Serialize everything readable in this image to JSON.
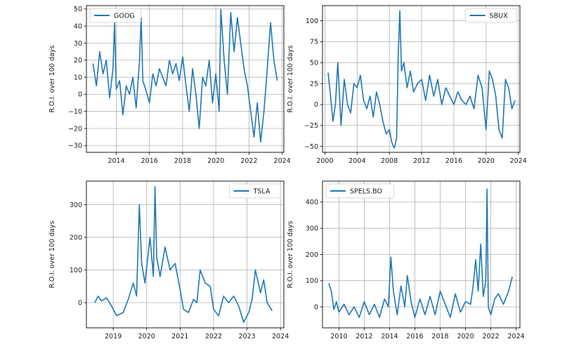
{
  "figure": {
    "background": "#ffffff",
    "line_color": "#1f77b4",
    "grid_color": "#b0b0b0"
  },
  "chart_data": [
    {
      "type": "line",
      "ylabel": "R.O.I. over 100 days",
      "legend": {
        "label": "GOOG",
        "location": "upper-left"
      },
      "grid": true,
      "xlim": [
        2012.2,
        2024.1
      ],
      "ylim": [
        -34,
        52
      ],
      "x_ticks": [
        2014,
        2016,
        2018,
        2020,
        2022,
        2024
      ],
      "x_tick_labels": [
        "2014",
        "2016",
        "2018",
        "2020",
        "2022",
        "2024"
      ],
      "y_ticks": [
        -30,
        -20,
        -10,
        0,
        10,
        20,
        30,
        40,
        50
      ],
      "y_tick_labels": [
        "−30",
        "−20",
        "−10",
        "0",
        "10",
        "20",
        "30",
        "40",
        "50"
      ],
      "series": [
        {
          "name": "GOOG",
          "x": [
            2012.6,
            2012.8,
            2013.0,
            2013.2,
            2013.4,
            2013.6,
            2013.8,
            2013.9,
            2014.0,
            2014.2,
            2014.4,
            2014.6,
            2014.8,
            2015.0,
            2015.2,
            2015.4,
            2015.5,
            2015.6,
            2015.8,
            2016.0,
            2016.2,
            2016.4,
            2016.6,
            2016.8,
            2017.0,
            2017.2,
            2017.4,
            2017.6,
            2017.8,
            2018.0,
            2018.2,
            2018.4,
            2018.6,
            2018.8,
            2019.0,
            2019.2,
            2019.4,
            2019.6,
            2019.8,
            2020.0,
            2020.2,
            2020.3,
            2020.5,
            2020.7,
            2020.9,
            2021.1,
            2021.3,
            2021.5,
            2021.7,
            2021.9,
            2022.1,
            2022.3,
            2022.5,
            2022.7,
            2022.9,
            2023.1,
            2023.3,
            2023.5,
            2023.7
          ],
          "y": [
            18,
            5,
            25,
            12,
            20,
            -2,
            15,
            42,
            3,
            8,
            -12,
            5,
            0,
            10,
            -8,
            20,
            45,
            8,
            2,
            -5,
            12,
            5,
            15,
            10,
            5,
            20,
            12,
            18,
            8,
            22,
            5,
            -10,
            15,
            0,
            -20,
            10,
            5,
            20,
            -5,
            12,
            -10,
            50,
            20,
            0,
            48,
            25,
            45,
            30,
            15,
            5,
            -10,
            -25,
            -5,
            -28,
            -10,
            15,
            42,
            20,
            8
          ]
        }
      ]
    },
    {
      "type": "line",
      "ylabel": "R.O.I. over 100 days",
      "legend": {
        "label": "SBUX",
        "location": "upper-right"
      },
      "grid": true,
      "xlim": [
        1999.7,
        2024.2
      ],
      "ylim": [
        -57,
        118
      ],
      "x_ticks": [
        2000,
        2004,
        2008,
        2012,
        2016,
        2020,
        2024
      ],
      "x_tick_labels": [
        "2000",
        "2004",
        "2008",
        "2012",
        "2016",
        "2020",
        "2024"
      ],
      "y_ticks": [
        -50,
        -25,
        0,
        25,
        50,
        75,
        100
      ],
      "y_tick_labels": [
        "−50",
        "−25",
        "0",
        "25",
        "50",
        "75",
        "100"
      ],
      "series": [
        {
          "name": "SBUX",
          "x": [
            2000.4,
            2000.7,
            2001.0,
            2001.3,
            2001.6,
            2002.0,
            2002.4,
            2002.8,
            2003.2,
            2003.6,
            2004.0,
            2004.4,
            2004.8,
            2005.2,
            2005.6,
            2006.0,
            2006.4,
            2006.8,
            2007.2,
            2007.6,
            2008.0,
            2008.3,
            2008.6,
            2008.9,
            2009.1,
            2009.3,
            2009.5,
            2009.8,
            2010.2,
            2010.6,
            2011.0,
            2011.5,
            2012.0,
            2012.5,
            2013.0,
            2013.5,
            2014.0,
            2014.5,
            2015.0,
            2015.5,
            2016.0,
            2016.5,
            2017.0,
            2017.5,
            2018.0,
            2018.5,
            2019.0,
            2019.5,
            2020.0,
            2020.4,
            2020.8,
            2021.2,
            2021.6,
            2022.0,
            2022.4,
            2022.8,
            2023.2,
            2023.6
          ],
          "y": [
            38,
            10,
            -20,
            0,
            50,
            -25,
            30,
            0,
            -10,
            25,
            20,
            35,
            5,
            -5,
            10,
            -15,
            15,
            0,
            -20,
            -35,
            -30,
            -45,
            -52,
            -40,
            60,
            112,
            40,
            50,
            20,
            40,
            15,
            25,
            30,
            5,
            35,
            10,
            30,
            0,
            20,
            10,
            0,
            15,
            5,
            0,
            10,
            -5,
            35,
            20,
            -30,
            40,
            30,
            10,
            -30,
            -40,
            30,
            20,
            -5,
            5
          ]
        }
      ]
    },
    {
      "type": "line",
      "ylabel": "R.O.I. over 100 days",
      "legend": {
        "label": "TSLA",
        "location": "upper-right"
      },
      "grid": true,
      "xlim": [
        2018.2,
        2024.1
      ],
      "ylim": [
        -77,
        372
      ],
      "x_ticks": [
        2019,
        2020,
        2021,
        2022,
        2023,
        2024
      ],
      "x_tick_labels": [
        "2019",
        "2020",
        "2021",
        "2022",
        "2023",
        "2024"
      ],
      "y_ticks": [
        0,
        100,
        200,
        300
      ],
      "y_tick_labels": [
        "0",
        "100",
        "200",
        "300"
      ],
      "series": [
        {
          "name": "TSLA",
          "x": [
            2018.45,
            2018.55,
            2018.65,
            2018.8,
            2018.95,
            2019.1,
            2019.3,
            2019.45,
            2019.6,
            2019.7,
            2019.78,
            2019.85,
            2019.95,
            2020.1,
            2020.2,
            2020.25,
            2020.3,
            2020.4,
            2020.55,
            2020.7,
            2020.85,
            2021.0,
            2021.1,
            2021.25,
            2021.4,
            2021.5,
            2021.6,
            2021.75,
            2021.9,
            2022.0,
            2022.15,
            2022.3,
            2022.45,
            2022.6,
            2022.75,
            2022.9,
            2023.05,
            2023.15,
            2023.25,
            2023.4,
            2023.5,
            2023.6,
            2023.75
          ],
          "y": [
            0,
            20,
            5,
            15,
            -10,
            -40,
            -30,
            10,
            60,
            20,
            300,
            120,
            60,
            200,
            80,
            355,
            140,
            80,
            170,
            100,
            120,
            40,
            -20,
            -30,
            10,
            0,
            100,
            60,
            50,
            -20,
            -40,
            20,
            0,
            20,
            -10,
            -60,
            -30,
            10,
            100,
            30,
            70,
            0,
            -25
          ]
        }
      ]
    },
    {
      "type": "line",
      "ylabel": "R.O.I. over 100 days",
      "legend": {
        "label": "SPELS.BO",
        "location": "upper-left"
      },
      "grid": true,
      "xlim": [
        2008.7,
        2024.3
      ],
      "ylim": [
        -80,
        480
      ],
      "x_ticks": [
        2010,
        2012,
        2014,
        2016,
        2018,
        2020,
        2022,
        2024
      ],
      "x_tick_labels": [
        "2010",
        "2012",
        "2014",
        "2016",
        "2018",
        "2020",
        "2022",
        "2024"
      ],
      "y_ticks": [
        0,
        100,
        200,
        300,
        400
      ],
      "y_tick_labels": [
        "0",
        "100",
        "200",
        "300",
        "400"
      ],
      "series": [
        {
          "name": "SPELS.BO",
          "x": [
            2009.2,
            2009.4,
            2009.6,
            2009.8,
            2010.0,
            2010.4,
            2010.8,
            2011.2,
            2011.6,
            2012.0,
            2012.4,
            2012.8,
            2013.2,
            2013.6,
            2013.9,
            2014.1,
            2014.3,
            2014.6,
            2014.9,
            2015.2,
            2015.4,
            2015.7,
            2016.0,
            2016.4,
            2016.8,
            2017.2,
            2017.6,
            2018.0,
            2018.4,
            2018.8,
            2019.2,
            2019.6,
            2020.0,
            2020.4,
            2020.6,
            2020.8,
            2021.0,
            2021.2,
            2021.4,
            2021.6,
            2021.7,
            2021.8,
            2022.0,
            2022.3,
            2022.6,
            2023.0,
            2023.4,
            2023.7
          ],
          "y": [
            90,
            60,
            -10,
            20,
            -20,
            10,
            -30,
            0,
            -40,
            20,
            -30,
            10,
            -40,
            30,
            0,
            190,
            60,
            -30,
            80,
            0,
            120,
            20,
            -40,
            30,
            -30,
            40,
            -30,
            60,
            10,
            -40,
            50,
            -20,
            20,
            10,
            80,
            180,
            60,
            240,
            40,
            100,
            450,
            0,
            -30,
            30,
            50,
            10,
            60,
            115
          ]
        }
      ]
    }
  ]
}
